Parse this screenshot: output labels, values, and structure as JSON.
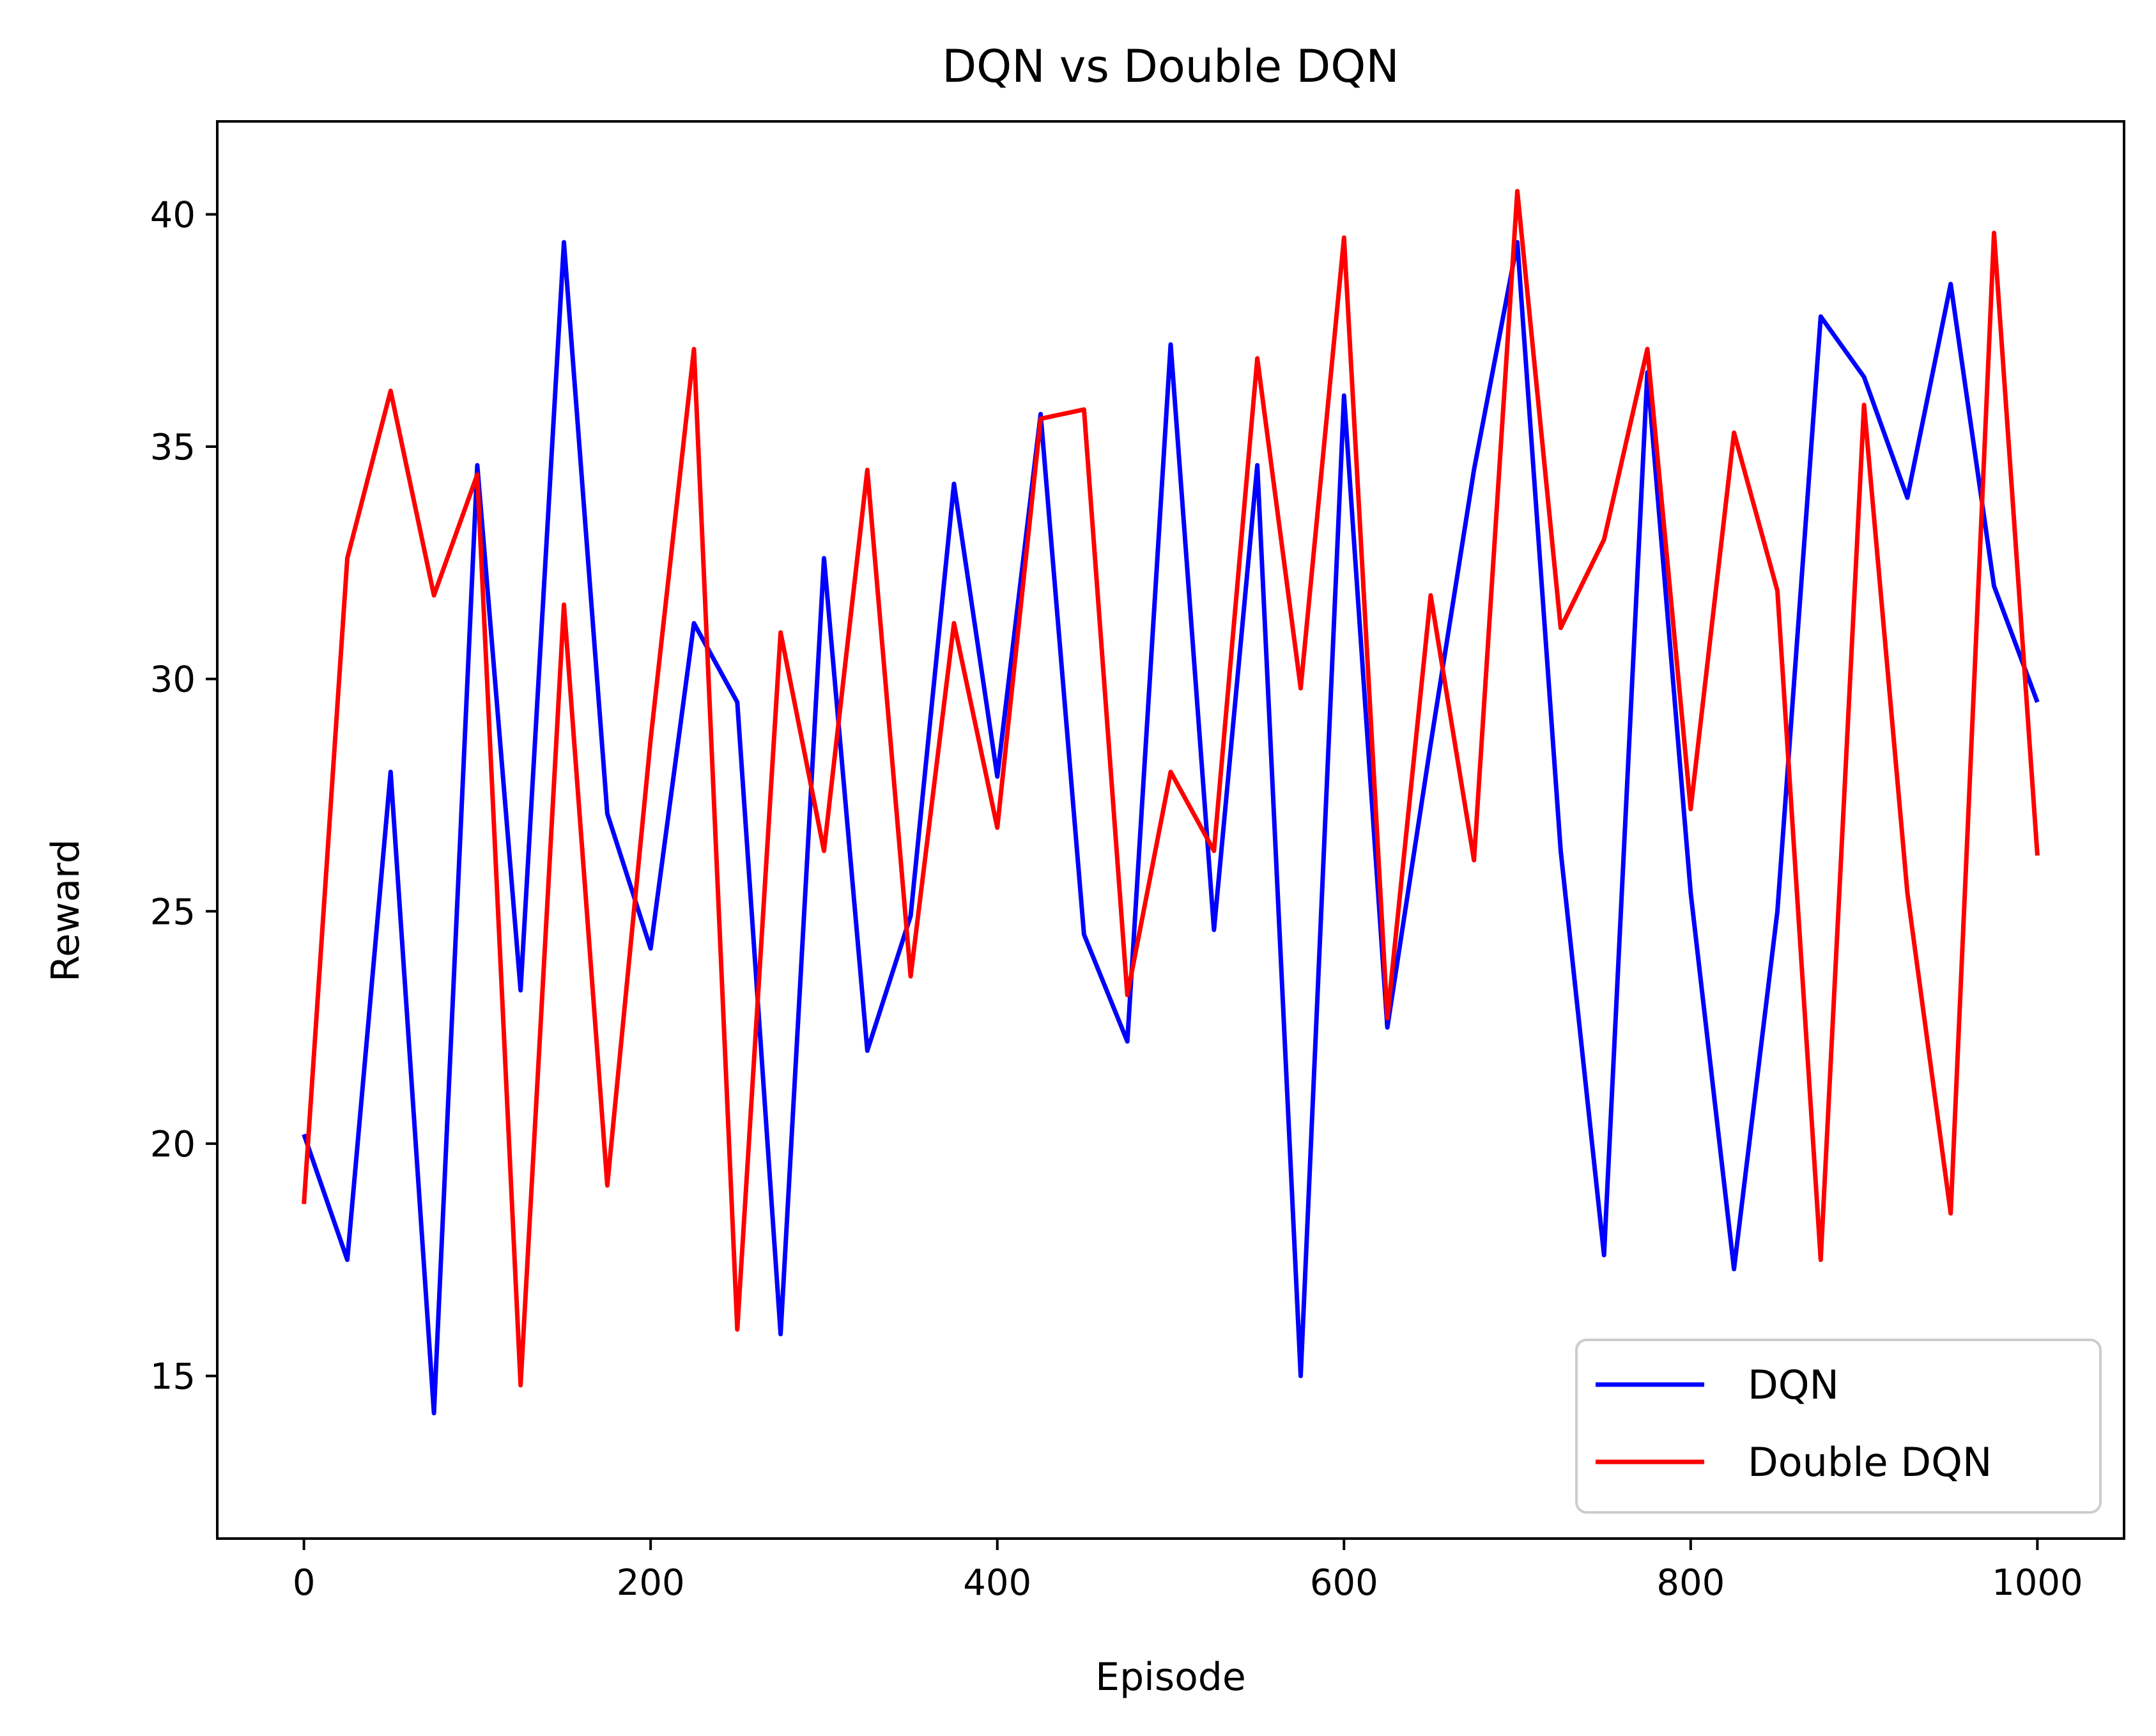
{
  "chart_data": {
    "type": "line",
    "title": "DQN vs Double DQN",
    "xlabel": "Episode",
    "ylabel": "Reward",
    "xlim": [
      -50,
      1050
    ],
    "ylim": [
      11.5,
      42
    ],
    "xticks": [
      0,
      200,
      400,
      600,
      800,
      1000
    ],
    "yticks": [
      15,
      20,
      25,
      30,
      35,
      40
    ],
    "grid": false,
    "legend_position": "lower-right",
    "x": [
      0,
      25,
      50,
      75,
      100,
      125,
      150,
      175,
      200,
      225,
      250,
      275,
      300,
      325,
      350,
      375,
      400,
      425,
      450,
      475,
      500,
      525,
      550,
      575,
      600,
      625,
      650,
      675,
      700,
      725,
      750,
      775,
      800,
      825,
      850,
      875,
      900,
      925,
      950,
      975,
      1000
    ],
    "series": [
      {
        "name": "DQN",
        "color": "#0000ff",
        "values": [
          20.2,
          17.5,
          28.0,
          14.2,
          34.6,
          23.3,
          39.4,
          27.1,
          24.2,
          31.2,
          29.5,
          15.9,
          32.6,
          22.0,
          24.9,
          34.2,
          27.9,
          35.7,
          24.5,
          22.2,
          37.2,
          24.6,
          34.6,
          15.0,
          36.1,
          22.5,
          28.6,
          34.5,
          39.4,
          26.3,
          17.6,
          36.6,
          25.4,
          17.3,
          25.0,
          37.8,
          36.5,
          33.9,
          38.5,
          32.0,
          29.5
        ]
      },
      {
        "name": "Double DQN",
        "color": "#ff0000",
        "values": [
          18.7,
          32.6,
          36.2,
          31.8,
          34.4,
          14.8,
          31.6,
          19.1,
          28.7,
          37.1,
          16.0,
          31.0,
          26.3,
          34.5,
          23.6,
          31.2,
          26.8,
          35.6,
          35.8,
          23.2,
          28.0,
          26.3,
          36.9,
          29.8,
          39.5,
          22.7,
          31.8,
          26.1,
          40.5,
          31.1,
          33.0,
          37.1,
          27.2,
          35.3,
          31.9,
          17.5,
          35.9,
          25.4,
          18.5,
          39.6,
          26.2
        ]
      }
    ]
  }
}
